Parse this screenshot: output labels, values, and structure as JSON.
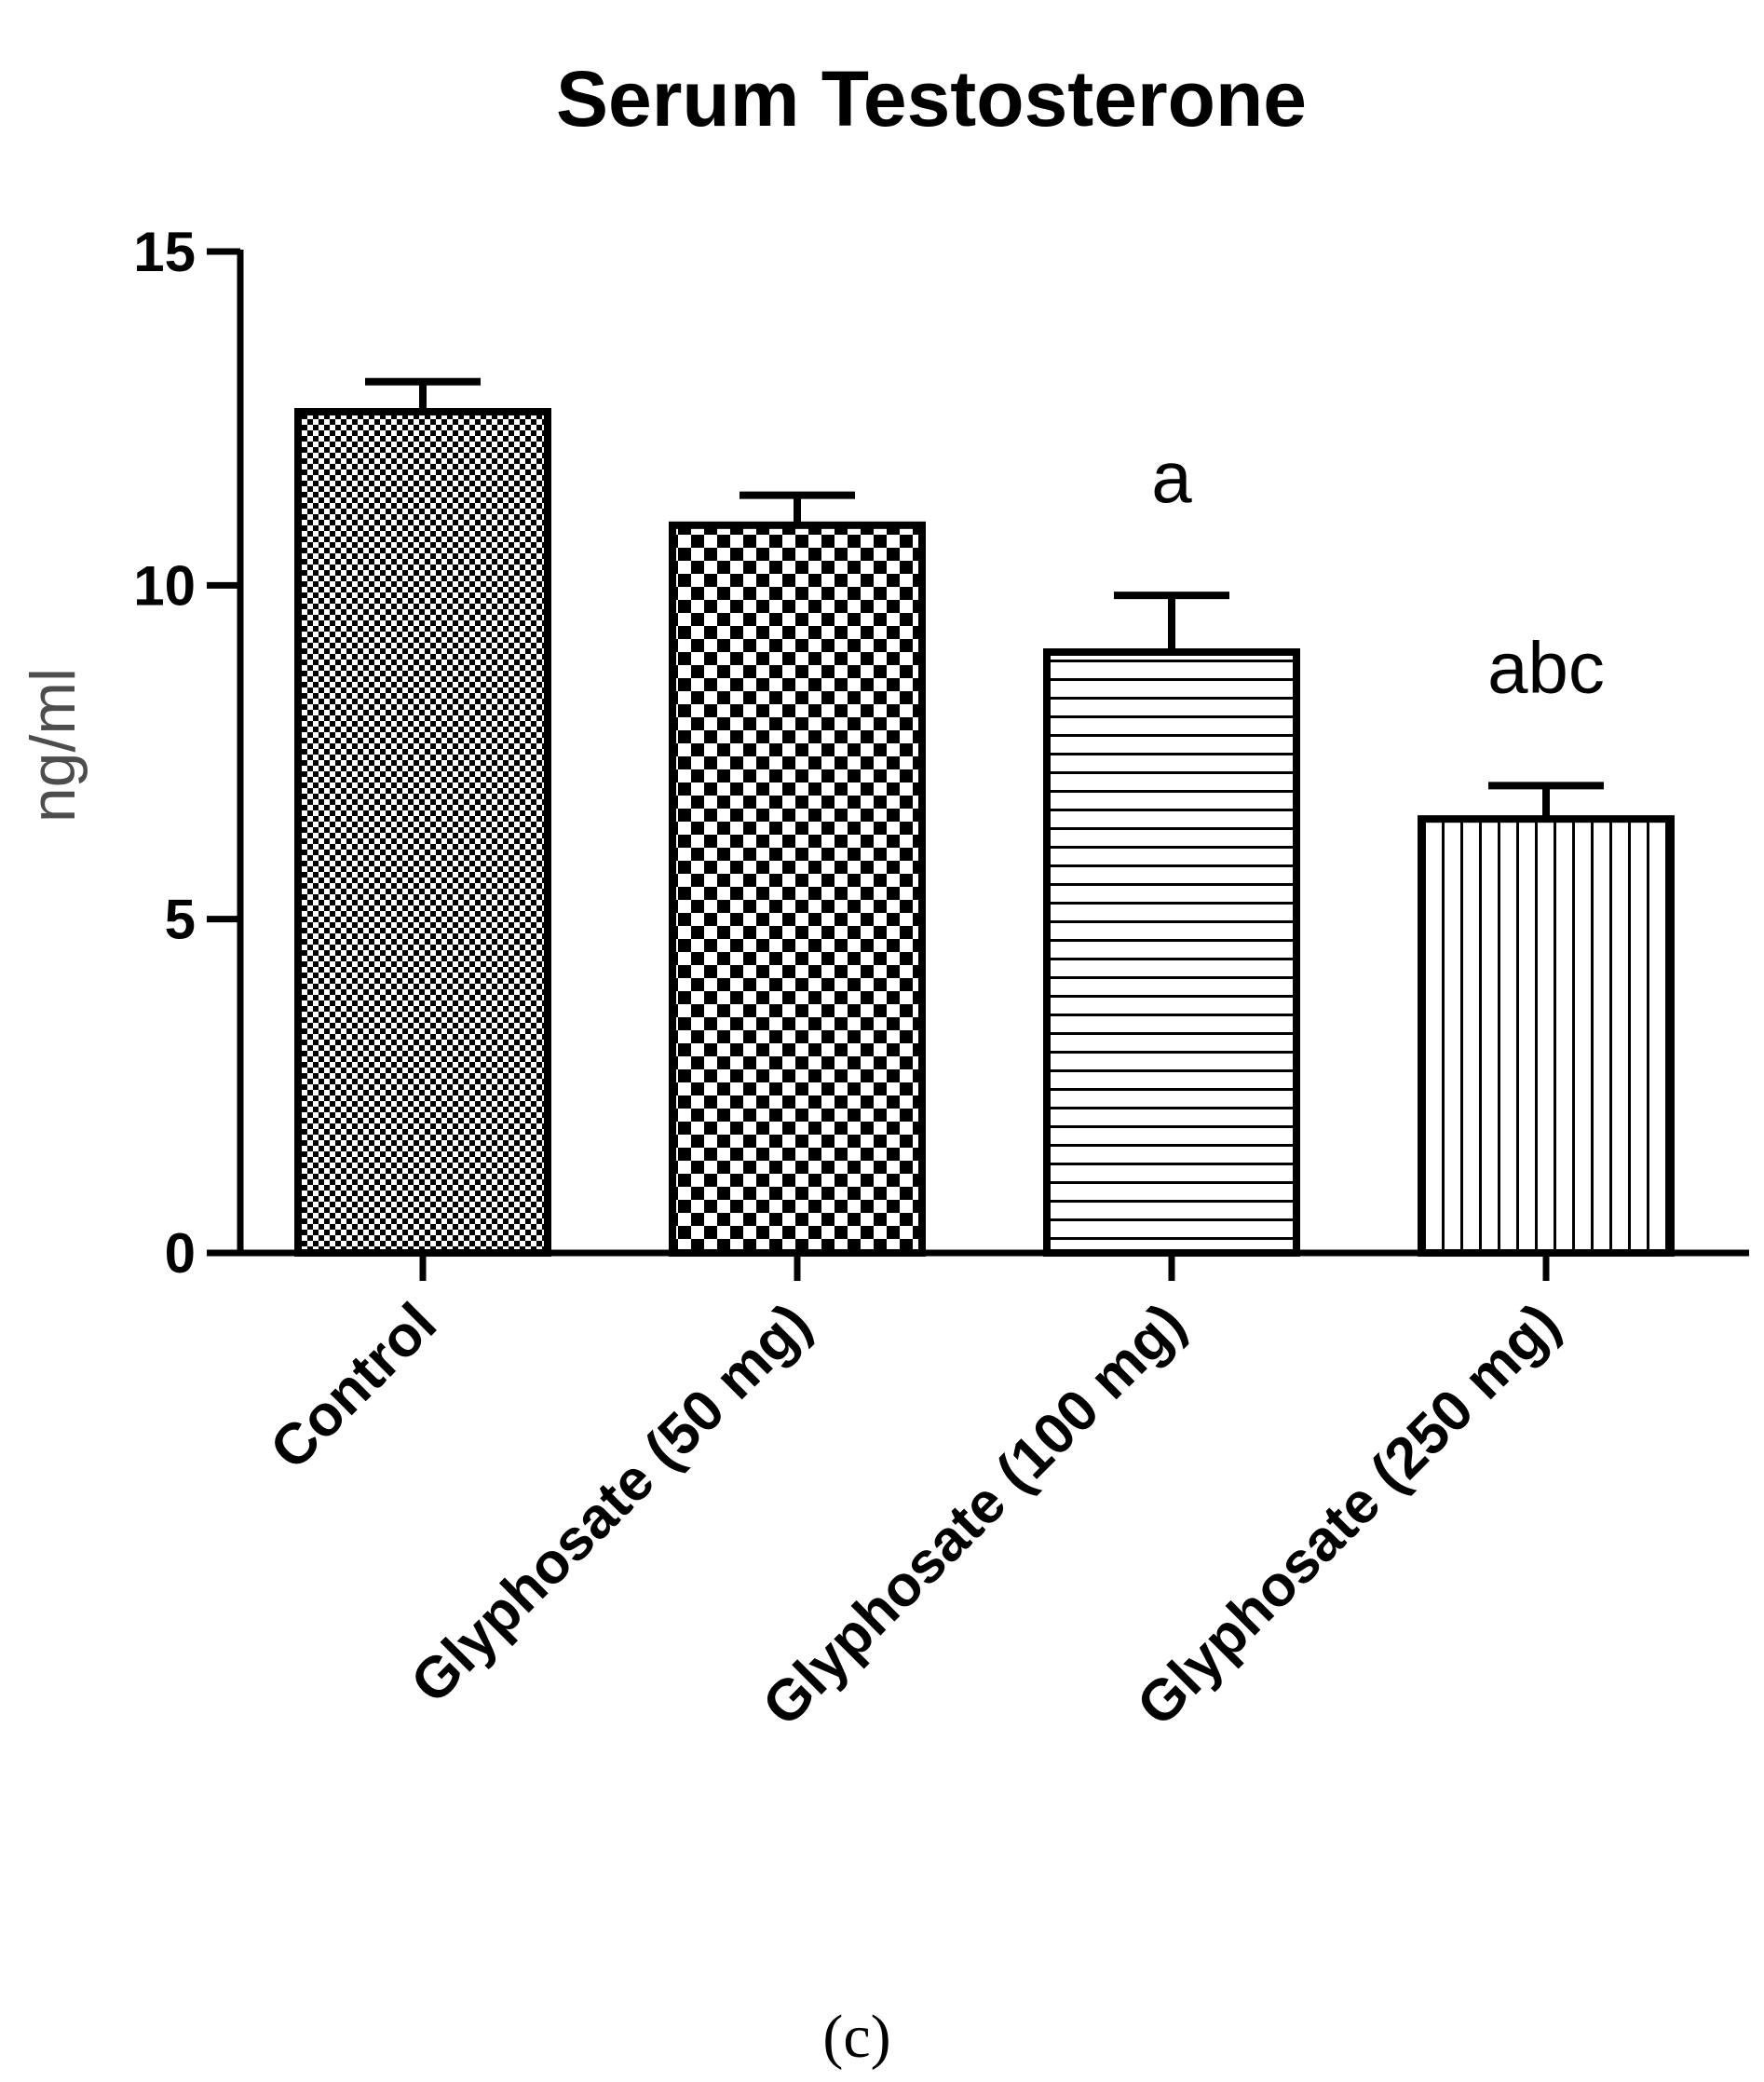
{
  "chart_data": {
    "type": "bar",
    "title": "Serum Testosterone",
    "ylabel": "ng/ml",
    "xlabel": "",
    "ylim": [
      0,
      15
    ],
    "yticks": [
      0,
      5,
      10,
      15
    ],
    "grid": false,
    "categories": [
      "Control",
      "Glyphosate (50 mg)",
      "Glyphosate (100 mg)",
      "Glyphosate (250 mg)"
    ],
    "values": [
      12.6,
      10.9,
      9.0,
      6.5
    ],
    "errors": [
      0.45,
      0.45,
      0.85,
      0.5
    ],
    "annotations": [
      "",
      "",
      "a",
      "abc"
    ],
    "patterns": [
      "fine-checker",
      "coarse-checker",
      "horizontal-lines",
      "vertical-lines"
    ],
    "bar_color": "#000000",
    "panel_label": "(c)"
  }
}
